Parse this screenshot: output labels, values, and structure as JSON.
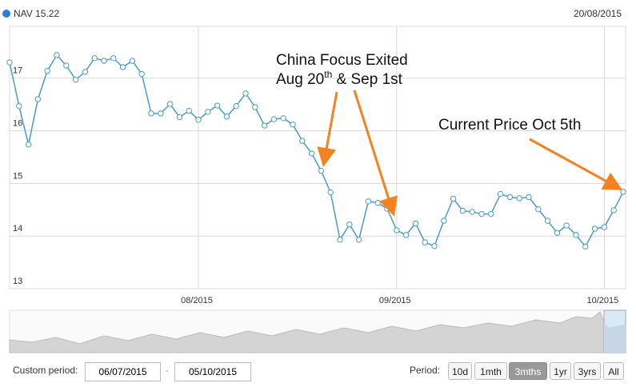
{
  "chart_data": {
    "type": "line",
    "legend_label": "NAV 15.22",
    "hover_date": "20/08/2015",
    "categories": [
      null,
      null,
      null,
      null,
      null,
      null,
      null,
      null,
      null,
      null,
      null,
      null,
      null,
      null,
      null,
      null,
      null,
      null,
      null,
      null,
      "08/2015",
      null,
      null,
      null,
      null,
      null,
      null,
      null,
      null,
      null,
      null,
      null,
      null,
      null,
      null,
      null,
      null,
      null,
      null,
      null,
      null,
      "09/2015",
      null,
      null,
      null,
      null,
      null,
      null,
      null,
      null,
      null,
      null,
      null,
      null,
      null,
      null,
      null,
      null,
      null,
      null,
      null,
      null,
      null,
      "10/2015",
      null,
      null
    ],
    "series": [
      {
        "name": "NAV",
        "color": "#4b9bc8",
        "values": [
          17.3,
          16.47,
          15.74,
          16.6,
          17.14,
          17.44,
          17.24,
          16.97,
          17.12,
          17.38,
          17.33,
          17.38,
          17.21,
          17.33,
          17.08,
          16.33,
          16.33,
          16.51,
          16.26,
          16.38,
          16.21,
          16.36,
          16.48,
          16.27,
          16.47,
          16.71,
          16.45,
          16.1,
          16.22,
          16.24,
          16.12,
          15.81,
          15.57,
          15.24,
          14.83,
          13.93,
          14.22,
          13.93,
          14.66,
          14.63,
          14.52,
          14.11,
          14.02,
          14.24,
          13.88,
          13.81,
          14.29,
          14.71,
          14.48,
          14.46,
          14.42,
          14.42,
          14.8,
          14.74,
          14.72,
          14.74,
          14.51,
          14.29,
          14.06,
          14.2,
          14.02,
          13.8,
          14.14,
          14.17,
          14.49,
          14.84
        ]
      }
    ],
    "ylim": [
      13,
      18
    ],
    "yticks": [
      13,
      14,
      15,
      16,
      17
    ],
    "grid": true,
    "annotations": {
      "line1": "China Focus Exited",
      "line2_main": "Aug 20",
      "line2_sup": "th",
      "line2_rest": " & Sep 1st",
      "current": "Current Price Oct 5th"
    }
  },
  "controls": {
    "custom_label": "Custom period:",
    "from": "06/07/2015",
    "separator": "-",
    "to": "05/10/2015",
    "period_label": "Period:",
    "buttons": [
      "10d",
      "1mth",
      "3mths",
      "1yr",
      "3yrs",
      "All"
    ]
  }
}
